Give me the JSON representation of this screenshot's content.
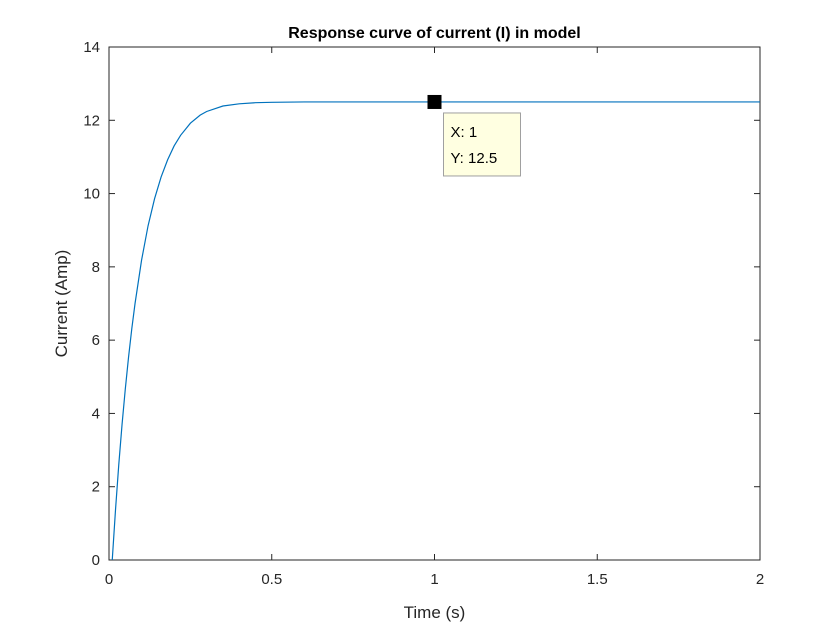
{
  "chart_data": {
    "type": "line",
    "title": "Response curve of current (I) in model",
    "xlabel": "Time (s)",
    "ylabel": "Current (Amp)",
    "xlim": [
      0,
      2
    ],
    "ylim": [
      0,
      14
    ],
    "xticks": [
      0,
      0.5,
      1,
      1.5,
      2
    ],
    "xtick_labels": [
      "0",
      "0.5",
      "1",
      "1.5",
      "2"
    ],
    "yticks": [
      0,
      2,
      4,
      6,
      8,
      10,
      12,
      14
    ],
    "ytick_labels": [
      "0",
      "2",
      "4",
      "6",
      "8",
      "10",
      "12",
      "14"
    ],
    "grid": false,
    "series": [
      {
        "color": "#0072BD",
        "x": [
          0.01,
          0.02,
          0.03,
          0.04,
          0.05,
          0.06,
          0.07,
          0.08,
          0.1,
          0.12,
          0.14,
          0.16,
          0.18,
          0.2,
          0.22,
          0.25,
          0.28,
          0.3,
          0.35,
          0.4,
          0.45,
          0.5,
          0.6,
          0.7,
          0.8,
          0.9,
          1.0,
          1.2,
          1.4,
          1.6,
          1.8,
          2.0
        ],
        "y": [
          0,
          1.37,
          2.6,
          3.69,
          4.66,
          5.53,
          6.31,
          7.0,
          8.18,
          9.12,
          9.86,
          10.45,
          10.92,
          11.3,
          11.59,
          11.92,
          12.14,
          12.24,
          12.39,
          12.45,
          12.48,
          12.49,
          12.5,
          12.5,
          12.5,
          12.5,
          12.5,
          12.5,
          12.5,
          12.5,
          12.5,
          12.5
        ]
      }
    ],
    "datatip": {
      "x": 1,
      "y": 12.5,
      "x_text": "X: 1",
      "y_text": "Y: 12.5"
    }
  }
}
